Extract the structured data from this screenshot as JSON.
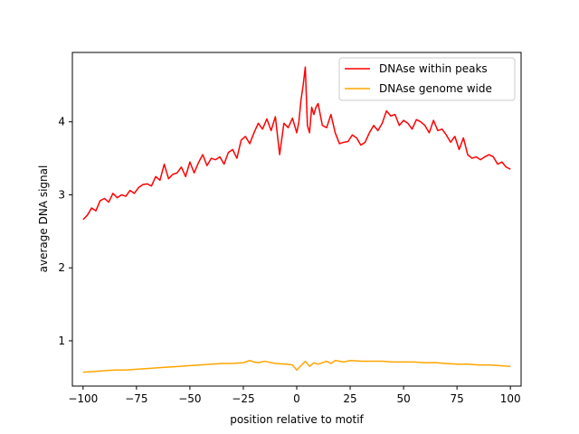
{
  "chart_data": {
    "type": "line",
    "title": "",
    "xlabel": "position relative to motif",
    "ylabel": "average DNA signal",
    "xlim": [
      -105,
      105
    ],
    "ylim": [
      0.38,
      4.95
    ],
    "xticks": [
      -100,
      -75,
      -50,
      -25,
      0,
      25,
      50,
      75,
      100
    ],
    "xtick_labels": [
      "−100",
      "−75",
      "−50",
      "−25",
      "0",
      "25",
      "50",
      "75",
      "100"
    ],
    "yticks": [
      1,
      2,
      3,
      4
    ],
    "ytick_labels": [
      "1",
      "2",
      "3",
      "4"
    ],
    "grid": false,
    "legend_position": "upper right",
    "series": [
      {
        "name": "DNAse within peaks",
        "color": "#ff0000",
        "x": [
          -100,
          -98,
          -96,
          -94,
          -92,
          -90,
          -88,
          -86,
          -84,
          -82,
          -80,
          -78,
          -76,
          -74,
          -72,
          -70,
          -68,
          -66,
          -64,
          -62,
          -60,
          -58,
          -56,
          -54,
          -52,
          -50,
          -48,
          -46,
          -44,
          -42,
          -40,
          -38,
          -36,
          -34,
          -32,
          -30,
          -28,
          -26,
          -24,
          -22,
          -20,
          -18,
          -16,
          -14,
          -12,
          -10,
          -8,
          -6,
          -4,
          -2,
          0,
          1,
          2,
          3,
          4,
          5,
          6,
          7,
          8,
          9,
          10,
          12,
          14,
          16,
          18,
          20,
          22,
          24,
          26,
          28,
          30,
          32,
          34,
          36,
          38,
          40,
          42,
          44,
          46,
          48,
          50,
          52,
          54,
          56,
          58,
          60,
          62,
          64,
          66,
          68,
          70,
          72,
          74,
          76,
          78,
          80,
          82,
          84,
          86,
          88,
          90,
          92,
          94,
          96,
          98,
          100
        ],
        "values": [
          2.66,
          2.72,
          2.82,
          2.78,
          2.92,
          2.95,
          2.9,
          3.02,
          2.96,
          3.0,
          2.98,
          3.06,
          3.02,
          3.1,
          3.14,
          3.15,
          3.12,
          3.25,
          3.2,
          3.42,
          3.22,
          3.28,
          3.3,
          3.38,
          3.25,
          3.45,
          3.3,
          3.44,
          3.55,
          3.4,
          3.5,
          3.48,
          3.52,
          3.42,
          3.58,
          3.62,
          3.5,
          3.75,
          3.8,
          3.7,
          3.85,
          3.98,
          3.9,
          4.04,
          3.88,
          4.07,
          3.55,
          3.98,
          3.92,
          4.05,
          3.85,
          4.0,
          4.3,
          4.5,
          4.75,
          3.95,
          3.85,
          4.2,
          4.1,
          4.2,
          4.25,
          3.95,
          3.92,
          4.1,
          3.85,
          3.7,
          3.72,
          3.73,
          3.82,
          3.78,
          3.68,
          3.72,
          3.85,
          3.95,
          3.88,
          3.98,
          4.15,
          4.08,
          4.1,
          3.95,
          4.02,
          3.98,
          3.9,
          4.03,
          4.0,
          3.95,
          3.85,
          4.02,
          3.88,
          3.9,
          3.82,
          3.72,
          3.8,
          3.62,
          3.78,
          3.55,
          3.5,
          3.52,
          3.48,
          3.52,
          3.55,
          3.52,
          3.42,
          3.45,
          3.38,
          3.35
        ]
      },
      {
        "name": "DNAse genome wide",
        "color": "#ffa500",
        "x": [
          -100,
          -95,
          -90,
          -85,
          -80,
          -75,
          -70,
          -65,
          -60,
          -55,
          -50,
          -45,
          -40,
          -35,
          -30,
          -25,
          -22,
          -20,
          -18,
          -15,
          -10,
          -5,
          -2,
          0,
          2,
          4,
          6,
          8,
          10,
          12,
          14,
          16,
          18,
          20,
          22,
          25,
          30,
          35,
          40,
          45,
          50,
          55,
          60,
          65,
          70,
          75,
          80,
          85,
          90,
          95,
          100
        ],
        "values": [
          0.57,
          0.58,
          0.59,
          0.6,
          0.6,
          0.61,
          0.62,
          0.63,
          0.64,
          0.65,
          0.66,
          0.67,
          0.68,
          0.69,
          0.69,
          0.7,
          0.73,
          0.71,
          0.7,
          0.72,
          0.69,
          0.68,
          0.67,
          0.6,
          0.66,
          0.72,
          0.65,
          0.7,
          0.68,
          0.7,
          0.72,
          0.69,
          0.73,
          0.72,
          0.71,
          0.73,
          0.72,
          0.72,
          0.72,
          0.71,
          0.71,
          0.71,
          0.7,
          0.7,
          0.69,
          0.68,
          0.68,
          0.67,
          0.67,
          0.66,
          0.65
        ]
      }
    ]
  }
}
